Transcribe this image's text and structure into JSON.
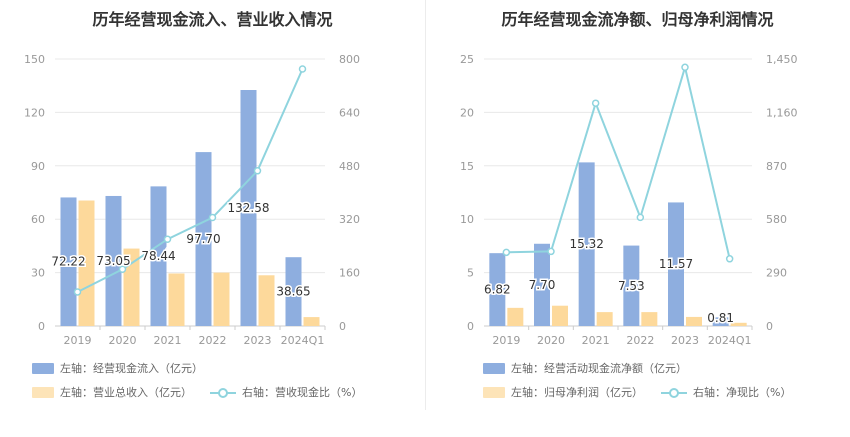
{
  "colors": {
    "bar1": "#8eaedf",
    "bar2": "#fdd99b",
    "line": "#8fd4de",
    "axis": "#999999",
    "grid": "#e8e8e8",
    "label": "#333333"
  },
  "chart_data": [
    {
      "type": "bar",
      "title": "历年经营现金流入、营业收入情况",
      "categories": [
        "2019",
        "2020",
        "2021",
        "2022",
        "2023",
        "2024Q1"
      ],
      "left_axis": {
        "min": 0,
        "max": 150,
        "ticks": [
          "0",
          "30",
          "60",
          "90",
          "120",
          "150"
        ]
      },
      "right_axis": {
        "min": 0,
        "max": 800,
        "ticks": [
          "0",
          "160",
          "320",
          "480",
          "640",
          "800"
        ]
      },
      "series": [
        {
          "name": "左轴：经营现金流入（亿元）",
          "type": "bar",
          "axis": "left",
          "values": [
            72.22,
            73.05,
            78.44,
            97.7,
            132.58,
            38.65
          ],
          "labels": [
            "72.22",
            "73.05",
            "78.44",
            "97.70",
            "132.58",
            "38.65"
          ]
        },
        {
          "name": "左轴：营业总收入（亿元）",
          "type": "bar",
          "axis": "left",
          "values": [
            70.5,
            43.5,
            29.5,
            30.0,
            28.5,
            5.0
          ]
        },
        {
          "name": "右轴：营收现金比（%）",
          "type": "line",
          "axis": "right",
          "values": [
            102,
            170,
            260,
            325,
            465,
            770
          ]
        }
      ]
    },
    {
      "type": "bar",
      "title": "历年经营现金流净额、归母净利润情况",
      "categories": [
        "2019",
        "2020",
        "2021",
        "2022",
        "2023",
        "2024Q1"
      ],
      "left_axis": {
        "min": 0,
        "max": 25,
        "ticks": [
          "0",
          "5",
          "10",
          "15",
          "20",
          "25"
        ]
      },
      "right_axis": {
        "min": 0,
        "max": 1450,
        "ticks": [
          "0",
          "290",
          "580",
          "870",
          "1,160",
          "1,450"
        ]
      },
      "series": [
        {
          "name": "左轴：经营活动现金流净额（亿元）",
          "type": "bar",
          "axis": "left",
          "values": [
            6.82,
            7.7,
            15.32,
            7.53,
            11.57,
            0.81
          ],
          "labels": [
            "6.82",
            "7.70",
            "15.32",
            "7.53",
            "11.57",
            "0.81"
          ]
        },
        {
          "name": "左轴：归母净利润（亿元）",
          "type": "bar",
          "axis": "left",
          "values": [
            1.7,
            1.9,
            1.3,
            1.3,
            0.85,
            0.3
          ]
        },
        {
          "name": "右轴：净现比（%）",
          "type": "line",
          "axis": "right",
          "values": [
            400,
            405,
            1210,
            590,
            1405,
            365
          ]
        }
      ]
    }
  ]
}
